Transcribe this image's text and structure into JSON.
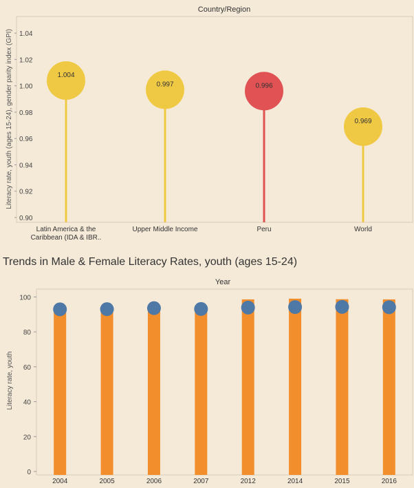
{
  "chart_data": [
    {
      "type": "lollipop",
      "header": "Country/Region",
      "ylabel": "Literacy rate, youth (ages 15-24), gender parity index (GPI)",
      "ylim": [
        0.9,
        1.05
      ],
      "yticks": [
        0.9,
        0.92,
        0.94,
        0.96,
        0.98,
        1.0,
        1.02,
        1.04
      ],
      "ytick_labels": [
        "0.90",
        "0.92",
        "0.94",
        "0.96",
        "0.98",
        "1.00",
        "1.02",
        "1.04"
      ],
      "categories": [
        [
          "Latin America & the",
          "Caribbean (IDA & IBR.."
        ],
        [
          "Upper Middle Income"
        ],
        [
          "Peru"
        ],
        [
          "World"
        ]
      ],
      "values": [
        1.004,
        0.997,
        0.996,
        0.969
      ],
      "value_labels": [
        "1.004",
        "0.997",
        "0.996",
        "0.969"
      ],
      "highlight_color": "#e05254",
      "default_color": "#f0c944",
      "colors": [
        "#f0c944",
        "#f0c944",
        "#e05254",
        "#f0c944"
      ],
      "grid": false
    },
    {
      "type": "bar",
      "title": "Trends in Male & Female Literacy Rates, youth (ages 15-24)",
      "header": "Year",
      "ylabel": "Literacy rate, youth",
      "ylim": [
        0,
        100
      ],
      "yticks": [
        0,
        20,
        40,
        60,
        80,
        100
      ],
      "categories": [
        "2004",
        "2005",
        "2006",
        "2007",
        "2012",
        "2014",
        "2015",
        "2016"
      ],
      "series": [
        {
          "type": "bar",
          "color": "#f28e2b",
          "values": [
            94.0,
            93.8,
            94.4,
            94.0,
            98.6,
            99.0,
            98.7,
            98.6
          ]
        },
        {
          "type": "scatter",
          "color": "#4e79a7",
          "values": [
            92.9,
            93.0,
            93.6,
            93.1,
            93.9,
            94.2,
            94.3,
            94.1
          ]
        }
      ],
      "grid": false
    }
  ]
}
